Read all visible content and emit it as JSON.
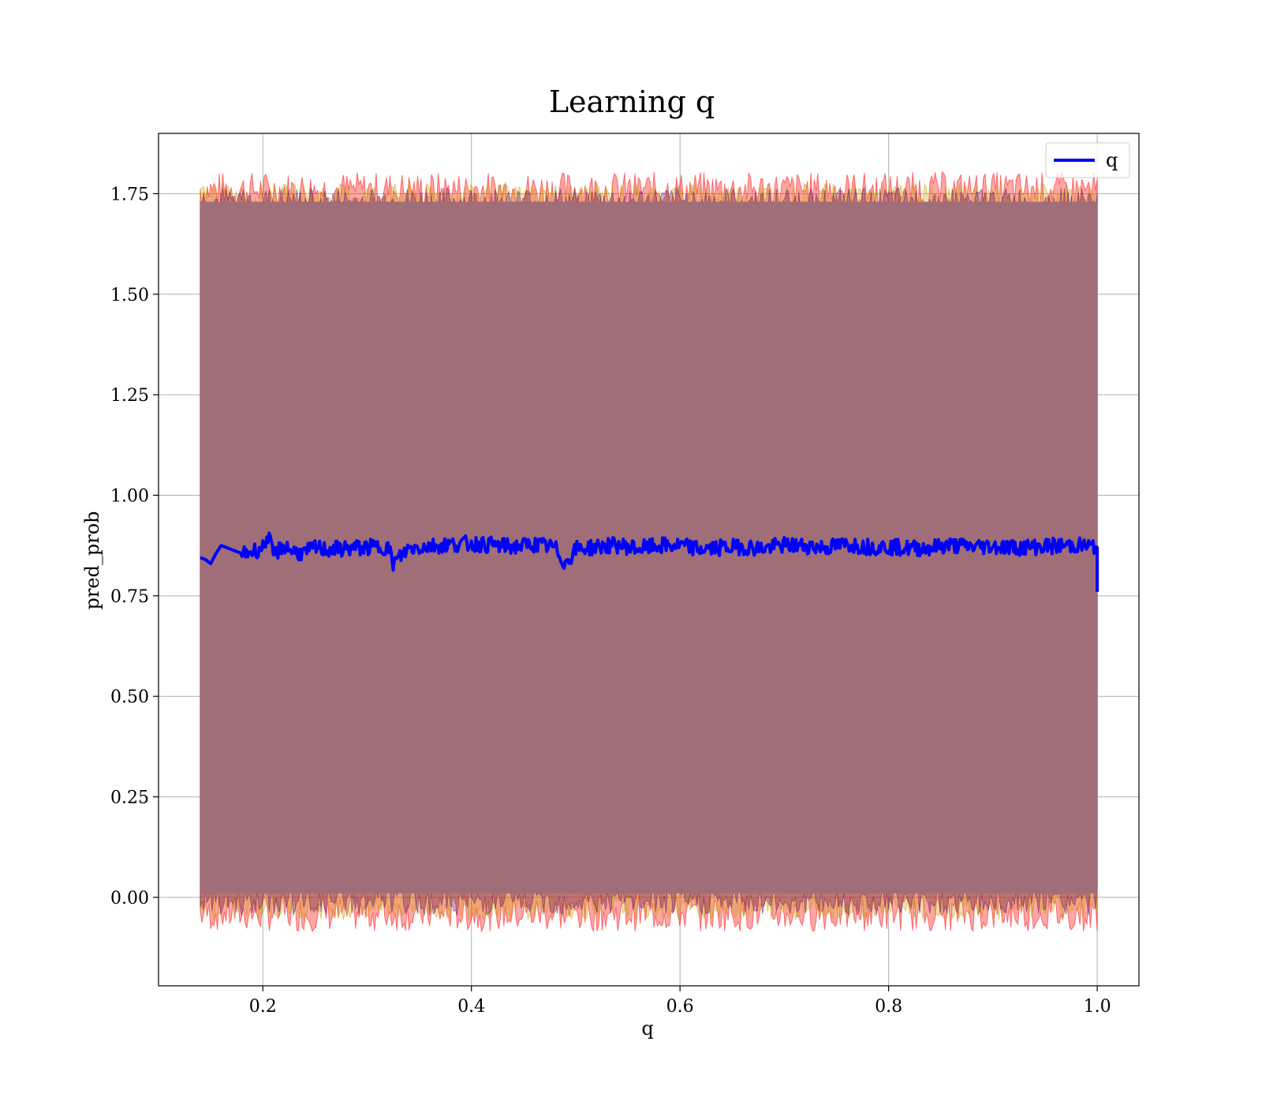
{
  "chart_data": {
    "type": "line",
    "title": "Learning q",
    "xlabel": "q",
    "ylabel": "pred_prob",
    "xlim": [
      0.1,
      1.04
    ],
    "ylim": [
      -0.22,
      1.9
    ],
    "xticks": [
      0.2,
      0.4,
      0.6,
      0.8,
      1.0
    ],
    "xtick_labels": [
      "0.2",
      "0.4",
      "0.6",
      "0.8",
      "1.0"
    ],
    "yticks": [
      0.0,
      0.25,
      0.5,
      0.75,
      1.0,
      1.25,
      1.5,
      1.75
    ],
    "ytick_labels": [
      "0.00",
      "0.25",
      "0.50",
      "0.75",
      "1.00",
      "1.25",
      "1.50",
      "1.75"
    ],
    "grid": true,
    "legend": {
      "position": "top-right",
      "entries": [
        "q"
      ]
    },
    "series": [
      {
        "name": "q",
        "color": "#0000ff",
        "x": [
          0.14,
          0.145,
          0.15,
          0.155,
          0.16,
          0.17,
          0.18,
          0.19,
          0.2,
          0.205,
          0.21,
          0.22,
          0.23,
          0.24,
          0.25,
          0.26,
          0.28,
          0.3,
          0.32,
          0.325,
          0.34,
          0.36,
          0.38,
          0.4,
          0.42,
          0.44,
          0.46,
          0.48,
          0.49,
          0.5,
          0.52,
          0.54,
          0.56,
          0.58,
          0.6,
          0.62,
          0.64,
          0.66,
          0.68,
          0.7,
          0.72,
          0.74,
          0.76,
          0.78,
          0.8,
          0.82,
          0.84,
          0.86,
          0.88,
          0.9,
          0.92,
          0.94,
          0.96,
          0.98,
          0.995,
          1.0,
          1.0
        ],
        "values": [
          0.845,
          0.84,
          0.83,
          0.855,
          0.875,
          0.865,
          0.855,
          0.86,
          0.87,
          0.9,
          0.85,
          0.875,
          0.86,
          0.855,
          0.87,
          0.865,
          0.868,
          0.87,
          0.872,
          0.83,
          0.868,
          0.874,
          0.878,
          0.88,
          0.876,
          0.872,
          0.878,
          0.87,
          0.83,
          0.866,
          0.872,
          0.876,
          0.868,
          0.874,
          0.875,
          0.866,
          0.87,
          0.872,
          0.868,
          0.876,
          0.874,
          0.87,
          0.878,
          0.872,
          0.872,
          0.868,
          0.87,
          0.876,
          0.872,
          0.874,
          0.87,
          0.872,
          0.874,
          0.876,
          0.872,
          0.87,
          0.76
        ]
      }
    ],
    "bands": [
      {
        "color": "#a06e78",
        "x_range": [
          0.14,
          1.0
        ],
        "lower": -0.02,
        "upper": 1.74
      }
    ]
  }
}
